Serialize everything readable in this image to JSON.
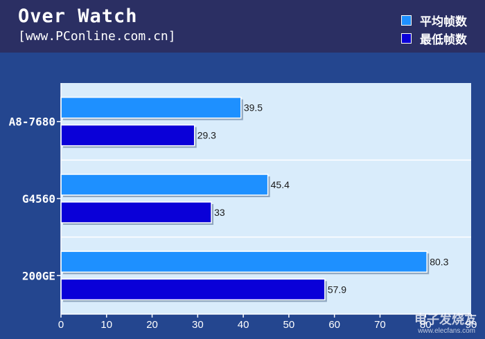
{
  "header": {
    "title": "Over Watch",
    "subtitle": "[www.PConline.com.cn]"
  },
  "legend": [
    {
      "label": "平均帧数",
      "color": "#1e90ff"
    },
    {
      "label": "最低帧数",
      "color": "#0a00d8"
    }
  ],
  "watermark": {
    "text": "电子发烧友",
    "sub": "www.elecfans.com"
  },
  "chart_data": {
    "type": "bar",
    "orientation": "horizontal",
    "title": "Over Watch",
    "categories": [
      "A8-7680",
      "G4560",
      "200GE"
    ],
    "series": [
      {
        "name": "平均帧数",
        "values": [
          39.5,
          45.4,
          80.3
        ],
        "color": "#1e90ff"
      },
      {
        "name": "最低帧数",
        "values": [
          29.3,
          33,
          57.9
        ],
        "color": "#0a00d8"
      }
    ],
    "value_labels": [
      [
        "39.5",
        "45.4",
        "80.3"
      ],
      [
        "29.3",
        "33",
        "57.9"
      ]
    ],
    "xlim": [
      0,
      90
    ],
    "xticks": [
      "0",
      "10",
      "20",
      "30",
      "40",
      "50",
      "60",
      "70",
      "80",
      "90"
    ],
    "grid": false,
    "legend_position": "top-right"
  }
}
